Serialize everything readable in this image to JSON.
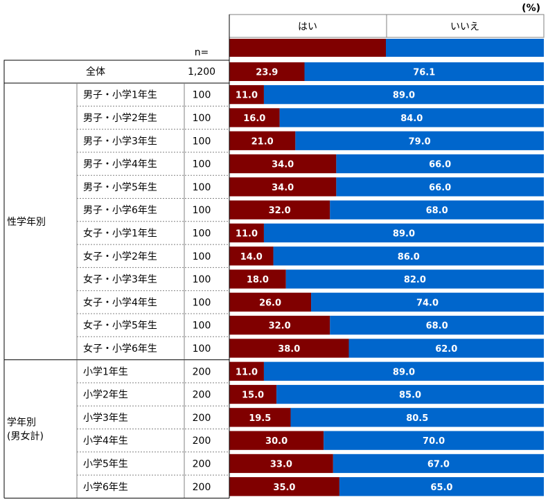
{
  "unit": "(%)",
  "n_label": "n=",
  "legend": {
    "yes": "はい",
    "no": "いいえ",
    "yes_color": "#800000",
    "no_color": "#0066CC"
  },
  "total": {
    "label": "全体",
    "n": "1,200",
    "yes": 23.9,
    "no": 76.1
  },
  "groups": [
    {
      "label": [
        "性学年別"
      ],
      "rows": [
        {
          "label": "男子・小学1年生",
          "n": "100",
          "yes": 11.0,
          "no": 89.0
        },
        {
          "label": "男子・小学2年生",
          "n": "100",
          "yes": 16.0,
          "no": 84.0
        },
        {
          "label": "男子・小学3年生",
          "n": "100",
          "yes": 21.0,
          "no": 79.0
        },
        {
          "label": "男子・小学4年生",
          "n": "100",
          "yes": 34.0,
          "no": 66.0
        },
        {
          "label": "男子・小学5年生",
          "n": "100",
          "yes": 34.0,
          "no": 66.0
        },
        {
          "label": "男子・小学6年生",
          "n": "100",
          "yes": 32.0,
          "no": 68.0
        },
        {
          "label": "女子・小学1年生",
          "n": "100",
          "yes": 11.0,
          "no": 89.0
        },
        {
          "label": "女子・小学2年生",
          "n": "100",
          "yes": 14.0,
          "no": 86.0
        },
        {
          "label": "女子・小学3年生",
          "n": "100",
          "yes": 18.0,
          "no": 82.0
        },
        {
          "label": "女子・小学4年生",
          "n": "100",
          "yes": 26.0,
          "no": 74.0
        },
        {
          "label": "女子・小学5年生",
          "n": "100",
          "yes": 32.0,
          "no": 68.0
        },
        {
          "label": "女子・小学6年生",
          "n": "100",
          "yes": 38.0,
          "no": 62.0
        }
      ]
    },
    {
      "label": [
        "学年別",
        "(男女計)"
      ],
      "rows": [
        {
          "label": "小学1年生",
          "n": "200",
          "yes": 11.0,
          "no": 89.0
        },
        {
          "label": "小学2年生",
          "n": "200",
          "yes": 15.0,
          "no": 85.0
        },
        {
          "label": "小学3年生",
          "n": "200",
          "yes": 19.5,
          "no": 80.5
        },
        {
          "label": "小学4年生",
          "n": "200",
          "yes": 30.0,
          "no": 70.0
        },
        {
          "label": "小学5年生",
          "n": "200",
          "yes": 33.0,
          "no": 67.0
        },
        {
          "label": "小学6年生",
          "n": "200",
          "yes": 35.0,
          "no": 65.0
        }
      ]
    }
  ],
  "chart_data": {
    "type": "bar",
    "stacked": true,
    "orientation": "horizontal",
    "xlim": [
      0,
      100
    ],
    "categories": [
      "全体",
      "男子・小学1年生",
      "男子・小学2年生",
      "男子・小学3年生",
      "男子・小学4年生",
      "男子・小学5年生",
      "男子・小学6年生",
      "女子・小学1年生",
      "女子・小学2年生",
      "女子・小学3年生",
      "女子・小学4年生",
      "女子・小学5年生",
      "女子・小学6年生",
      "小学1年生",
      "小学2年生",
      "小学3年生",
      "小学4年生",
      "小学5年生",
      "小学6年生"
    ],
    "series": [
      {
        "name": "はい",
        "values": [
          23.9,
          11.0,
          16.0,
          21.0,
          34.0,
          34.0,
          32.0,
          11.0,
          14.0,
          18.0,
          26.0,
          32.0,
          38.0,
          11.0,
          15.0,
          19.5,
          30.0,
          33.0,
          35.0
        ]
      },
      {
        "name": "いいえ",
        "values": [
          76.1,
          89.0,
          84.0,
          79.0,
          66.0,
          66.0,
          68.0,
          89.0,
          86.0,
          82.0,
          74.0,
          68.0,
          62.0,
          89.0,
          85.0,
          80.5,
          70.0,
          67.0,
          65.0
        ]
      }
    ]
  }
}
